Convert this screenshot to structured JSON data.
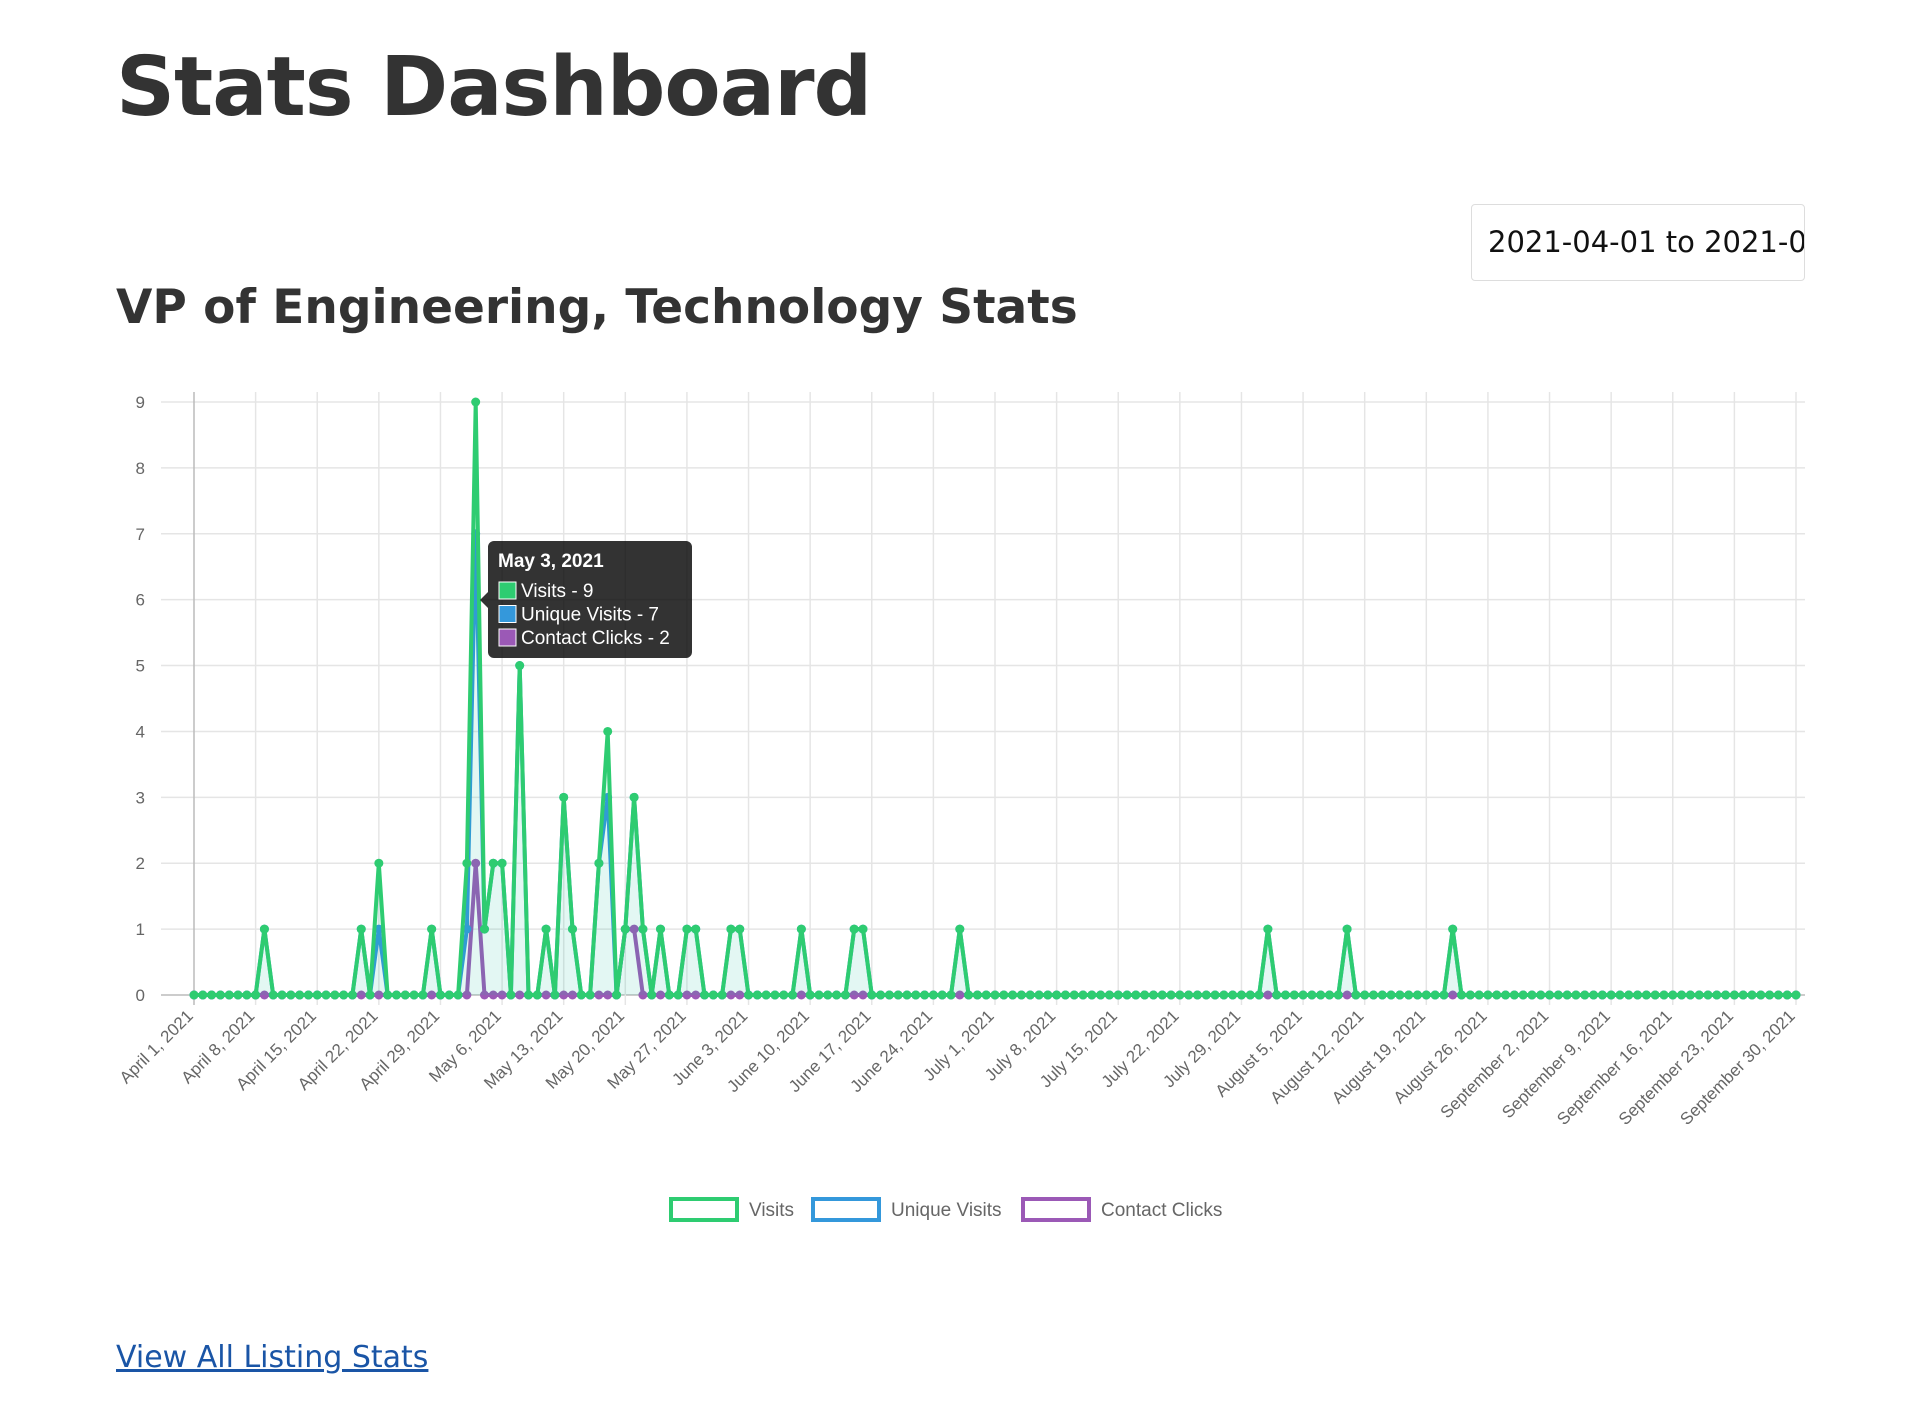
{
  "header": {
    "title": "Stats Dashboard"
  },
  "date_range": {
    "value": "2021-04-01 to 2021-0"
  },
  "footer": {
    "link": "View All Listing Stats"
  },
  "chart_data": {
    "type": "line",
    "title": "VP of Engineering, Technology Stats",
    "categories": [
      "April 1, 2021",
      null,
      null,
      null,
      null,
      null,
      null,
      "April 8, 2021",
      null,
      null,
      null,
      null,
      null,
      null,
      "April 15, 2021",
      null,
      null,
      null,
      null,
      null,
      null,
      "April 22, 2021",
      null,
      null,
      null,
      null,
      null,
      null,
      "April 29, 2021",
      null,
      null,
      null,
      null,
      null,
      null,
      "May 6, 2021",
      null,
      null,
      null,
      null,
      null,
      null,
      "May 13, 2021",
      null,
      null,
      null,
      null,
      null,
      null,
      "May 20, 2021",
      null,
      null,
      null,
      null,
      null,
      null,
      "May 27, 2021",
      null,
      null,
      null,
      null,
      null,
      null,
      "June 3, 2021",
      null,
      null,
      null,
      null,
      null,
      null,
      "June 10, 2021",
      null,
      null,
      null,
      null,
      null,
      null,
      "June 17, 2021",
      null,
      null,
      null,
      null,
      null,
      null,
      "June 24, 2021",
      null,
      null,
      null,
      null,
      null,
      null,
      "July 1, 2021",
      null,
      null,
      null,
      null,
      null,
      null,
      "July 8, 2021",
      null,
      null,
      null,
      null,
      null,
      null,
      "July 15, 2021",
      null,
      null,
      null,
      null,
      null,
      null,
      "July 22, 2021",
      null,
      null,
      null,
      null,
      null,
      null,
      "July 29, 2021",
      null,
      null,
      null,
      null,
      null,
      null,
      "August 5, 2021",
      null,
      null,
      null,
      null,
      null,
      null,
      "August 12, 2021",
      null,
      null,
      null,
      null,
      null,
      null,
      "August 19, 2021",
      null,
      null,
      null,
      null,
      null,
      null,
      "August 26, 2021",
      null,
      null,
      null,
      null,
      null,
      null,
      "September 2, 2021",
      null,
      null,
      null,
      null,
      null,
      null,
      "September 9, 2021",
      null,
      null,
      null,
      null,
      null,
      null,
      "September 16, 2021",
      null,
      null,
      null,
      null,
      null,
      null,
      "September 23, 2021",
      null,
      null,
      null,
      null,
      null,
      null,
      "September 30, 2021"
    ],
    "series": [
      {
        "name": "Visits",
        "color": "#2ecc71",
        "fill": "rgba(26,188,156,0.12)",
        "values": [
          0,
          0,
          0,
          0,
          0,
          0,
          0,
          0,
          1,
          0,
          0,
          0,
          0,
          0,
          0,
          0,
          0,
          0,
          0,
          1,
          0,
          2,
          0,
          0,
          0,
          0,
          0,
          1,
          0,
          0,
          0,
          2,
          9,
          1,
          2,
          2,
          0,
          5,
          0,
          0,
          1,
          0,
          3,
          1,
          0,
          0,
          2,
          4,
          0,
          1,
          3,
          1,
          0,
          1,
          0,
          0,
          1,
          1,
          0,
          0,
          0,
          1,
          1,
          0,
          0,
          0,
          0,
          0,
          0,
          1,
          0,
          0,
          0,
          0,
          0,
          1,
          1,
          0,
          0,
          0,
          0,
          0,
          0,
          0,
          0,
          0,
          0,
          1,
          0,
          0,
          0,
          0,
          0,
          0,
          0,
          0,
          0,
          0,
          0,
          0,
          0,
          0,
          0,
          0,
          0,
          0,
          0,
          0,
          0,
          0,
          0,
          0,
          0,
          0,
          0,
          0,
          0,
          0,
          0,
          0,
          0,
          0,
          1,
          0,
          0,
          0,
          0,
          0,
          0,
          0,
          0,
          1,
          0,
          0,
          0,
          0,
          0,
          0,
          0,
          0,
          0,
          0,
          0,
          1,
          0,
          0,
          0,
          0,
          0,
          0,
          0,
          0,
          0,
          0,
          0,
          0,
          0,
          0,
          0,
          0,
          0,
          0,
          0,
          0,
          0,
          0,
          0,
          0,
          0,
          0,
          0,
          0,
          0,
          0,
          0,
          0,
          0,
          0,
          0,
          0,
          0,
          0,
          0
        ]
      },
      {
        "name": "Unique Visits",
        "color": "#3498db",
        "values": [
          0,
          0,
          0,
          0,
          0,
          0,
          0,
          0,
          1,
          0,
          0,
          0,
          0,
          0,
          0,
          0,
          0,
          0,
          0,
          1,
          0,
          1,
          0,
          0,
          0,
          0,
          0,
          1,
          0,
          0,
          0,
          1,
          7,
          1,
          2,
          2,
          0,
          5,
          0,
          0,
          1,
          0,
          3,
          1,
          0,
          0,
          2,
          3,
          0,
          1,
          3,
          1,
          0,
          1,
          0,
          0,
          1,
          1,
          0,
          0,
          0,
          1,
          1,
          0,
          0,
          0,
          0,
          0,
          0,
          1,
          0,
          0,
          0,
          0,
          0,
          1,
          1,
          0,
          0,
          0,
          0,
          0,
          0,
          0,
          0,
          0,
          0,
          1,
          0,
          0,
          0,
          0,
          0,
          0,
          0,
          0,
          0,
          0,
          0,
          0,
          0,
          0,
          0,
          0,
          0,
          0,
          0,
          0,
          0,
          0,
          0,
          0,
          0,
          0,
          0,
          0,
          0,
          0,
          0,
          0,
          0,
          0,
          1,
          0,
          0,
          0,
          0,
          0,
          0,
          0,
          0,
          1,
          0,
          0,
          0,
          0,
          0,
          0,
          0,
          0,
          0,
          0,
          0,
          1,
          0,
          0,
          0,
          0,
          0,
          0,
          0,
          0,
          0,
          0,
          0,
          0,
          0,
          0,
          0,
          0,
          0,
          0,
          0,
          0,
          0,
          0,
          0,
          0,
          0,
          0,
          0,
          0,
          0,
          0,
          0,
          0,
          0,
          0,
          0,
          0,
          0,
          0,
          0
        ]
      },
      {
        "name": "Contact Clicks",
        "color": "#9b59b6",
        "values": [
          0,
          0,
          0,
          0,
          0,
          0,
          0,
          0,
          0,
          0,
          0,
          0,
          0,
          0,
          0,
          0,
          0,
          0,
          0,
          0,
          0,
          0,
          0,
          0,
          0,
          0,
          0,
          0,
          0,
          0,
          0,
          0,
          2,
          0,
          0,
          0,
          0,
          0,
          0,
          0,
          0,
          0,
          0,
          0,
          0,
          0,
          0,
          0,
          0,
          1,
          1,
          0,
          0,
          0,
          0,
          0,
          0,
          0,
          0,
          0,
          0,
          0,
          0,
          0,
          0,
          0,
          0,
          0,
          0,
          0,
          0,
          0,
          0,
          0,
          0,
          0,
          0,
          0,
          0,
          0,
          0,
          0,
          0,
          0,
          0,
          0,
          0,
          0,
          0,
          0,
          0,
          0,
          0,
          0,
          0,
          0,
          0,
          0,
          0,
          0,
          0,
          0,
          0,
          0,
          0,
          0,
          0,
          0,
          0,
          0,
          0,
          0,
          0,
          0,
          0,
          0,
          0,
          0,
          0,
          0,
          0,
          0,
          0,
          0,
          0,
          0,
          0,
          0,
          0,
          0,
          0,
          0,
          0,
          0,
          0,
          0,
          0,
          0,
          0,
          0,
          0,
          0,
          0,
          0,
          0,
          0,
          0,
          0,
          0,
          0,
          0,
          0,
          0,
          0,
          0,
          0,
          0,
          0,
          0,
          0,
          0,
          0,
          0,
          0,
          0,
          0,
          0,
          0,
          0,
          0,
          0,
          0,
          0,
          0,
          0,
          0,
          0,
          0,
          0,
          0,
          0,
          0,
          0
        ]
      }
    ],
    "ylim": [
      0,
      9
    ],
    "yticks": [
      0,
      1,
      2,
      3,
      4,
      5,
      6,
      7,
      8,
      9
    ],
    "grid": true,
    "legend": "bottom",
    "tooltip": {
      "index": 32,
      "title": "May 3, 2021",
      "items": [
        "Visits - 9",
        "Unique Visits - 7",
        "Contact Clicks - 2"
      ]
    }
  }
}
